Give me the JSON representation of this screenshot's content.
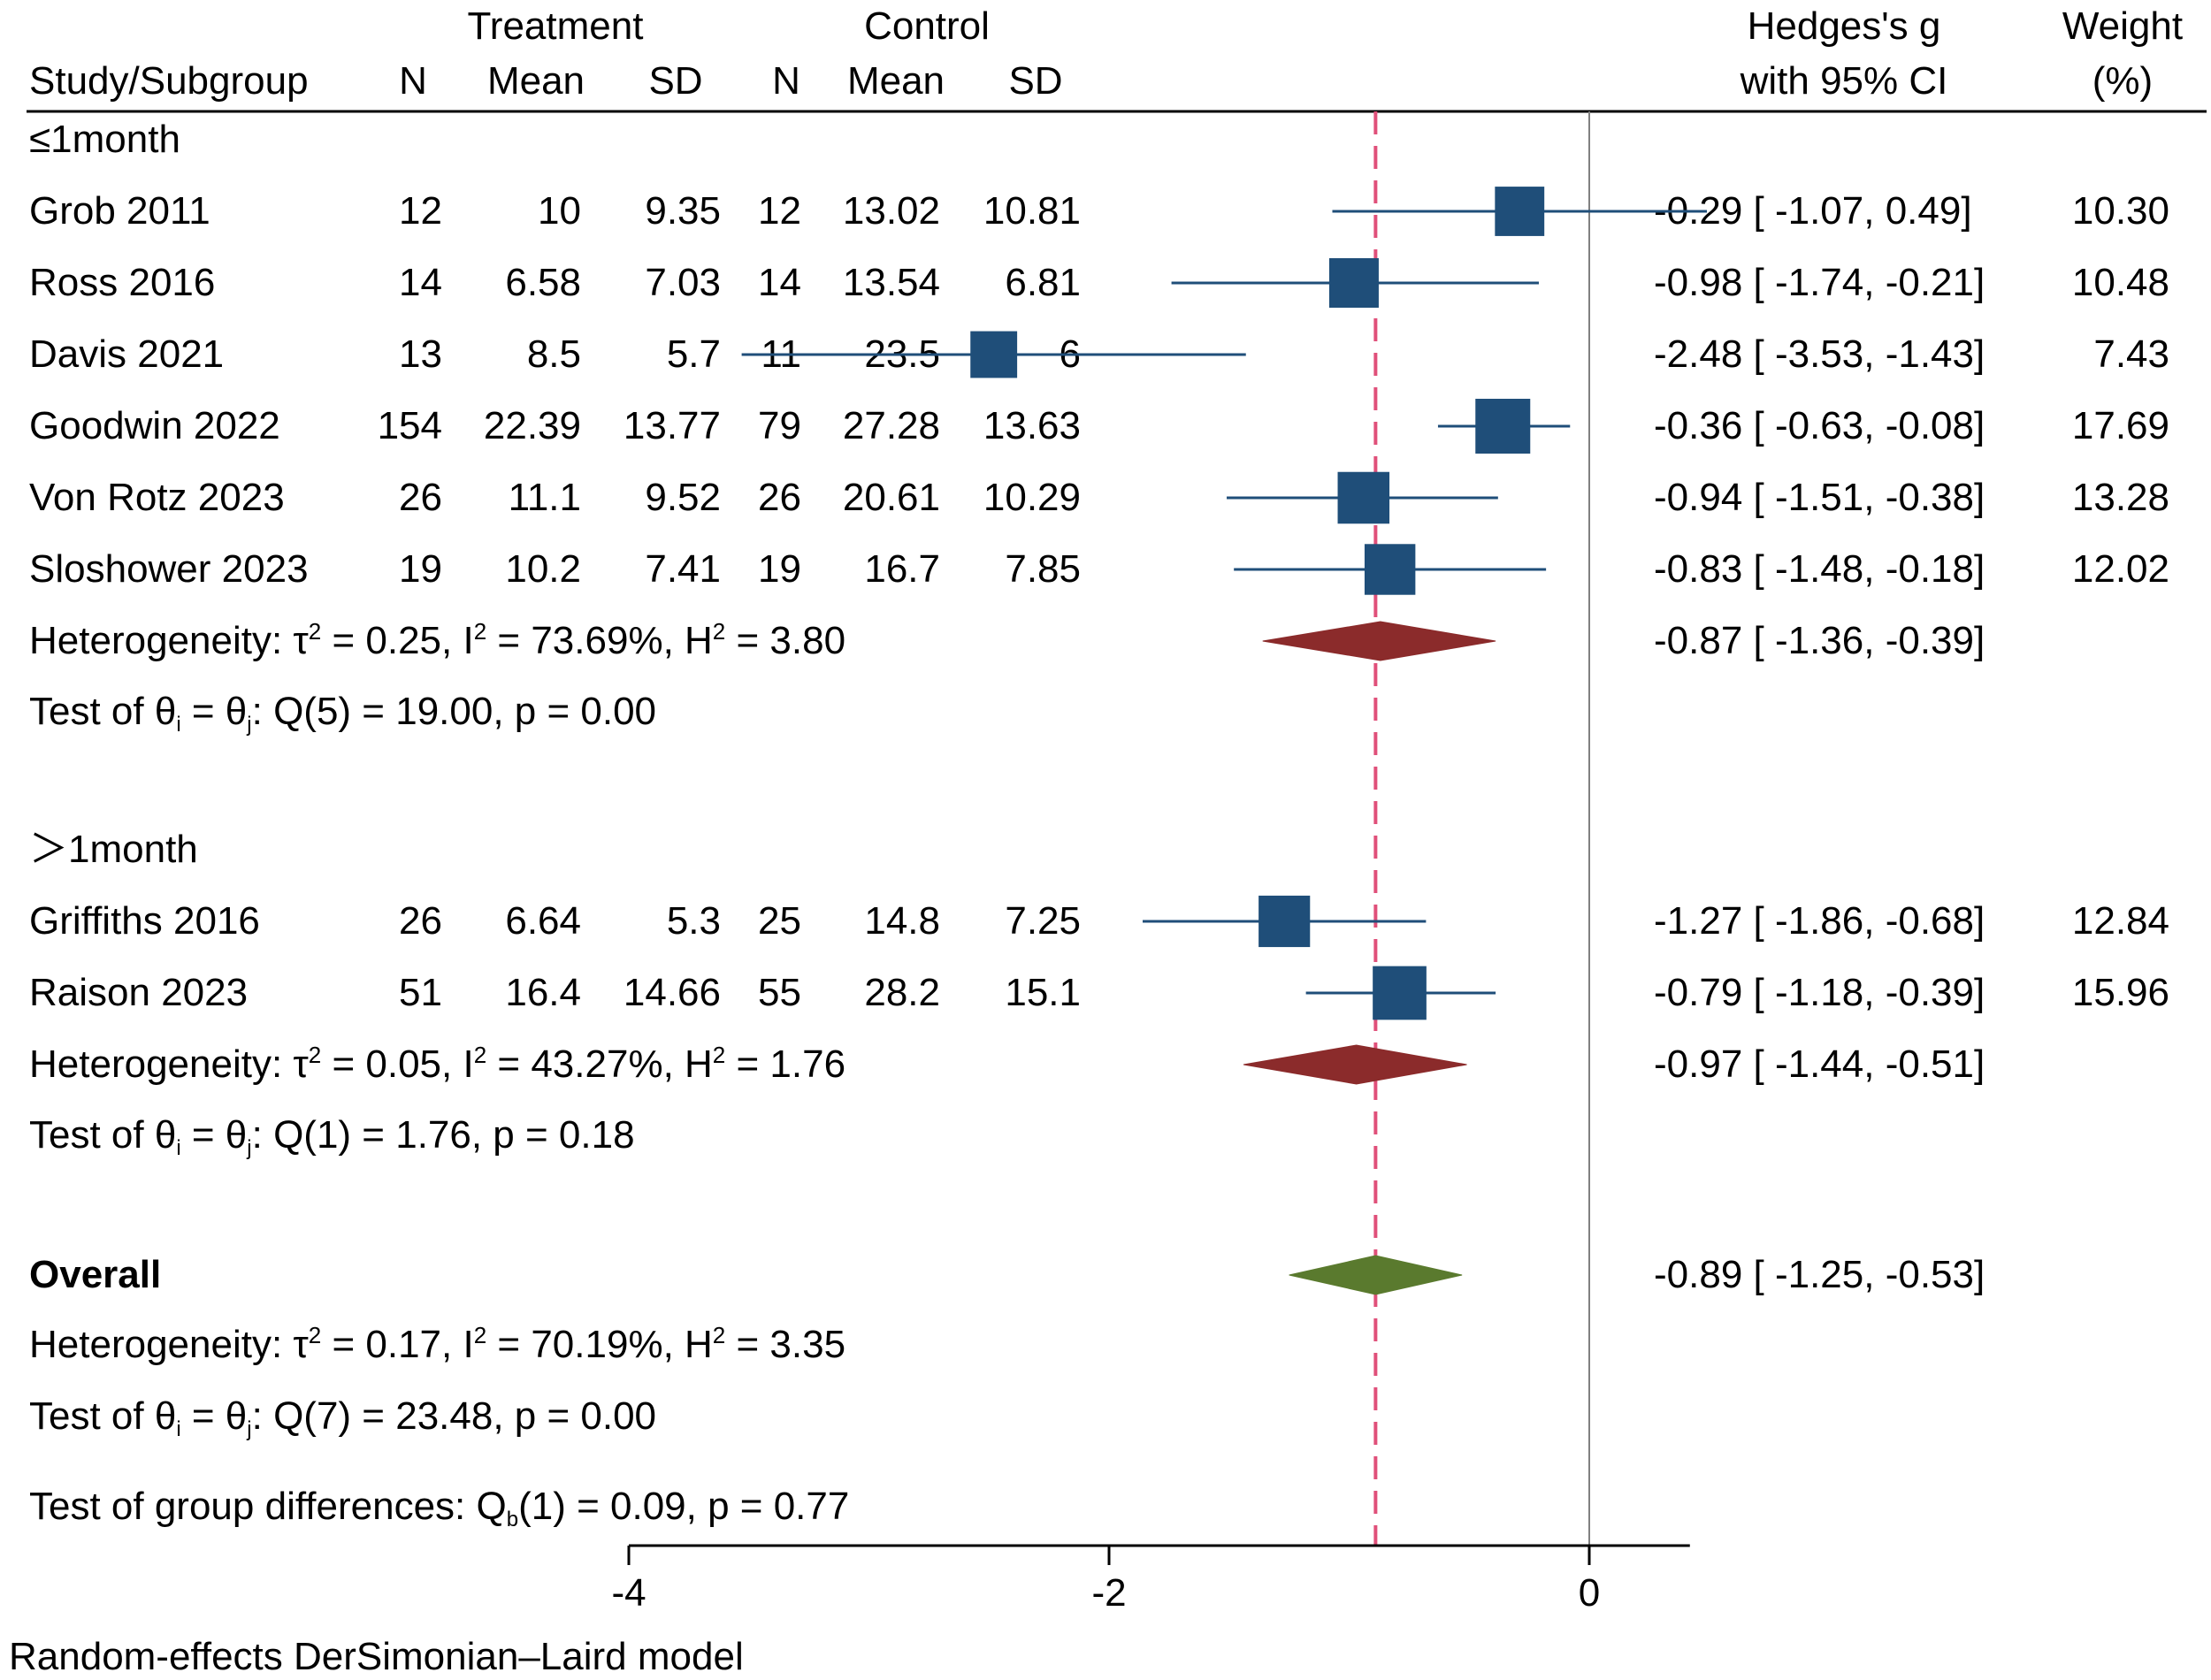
{
  "header": {
    "treatment": "Treatment",
    "control": "Control",
    "effect_line1": "Hedges's g",
    "effect_line2": "with 95% CI",
    "weight_line1": "Weight",
    "weight_line2": "(%)",
    "study_col": "Study/Subgroup",
    "n": "N",
    "mean": "Mean",
    "sd": "SD"
  },
  "colors": {
    "study_square": "#1f4e79",
    "subgroup_diamond": "#8b2b2b",
    "overall_diamond": "#5a7a2e",
    "overall_line": "#e0507a",
    "null_line": "#808080"
  },
  "chart_data": {
    "type": "forest",
    "title": "",
    "xlabel": "",
    "ylabel": "",
    "xlim": [
      -4.6,
      0.5
    ],
    "xticks": [
      -4,
      -2,
      0
    ],
    "xtick_labels": [
      "-4",
      "-2",
      "0"
    ],
    "overall_line_value": -0.89,
    "subgroups": [
      {
        "label": "≤1month",
        "studies": [
          {
            "name": "Grob  2011",
            "t_n": "12",
            "t_mean": "10",
            "t_sd": "9.35",
            "c_n": "12",
            "c_mean": "13.02",
            "c_sd": "10.81",
            "g": -0.29,
            "lo": -1.07,
            "hi": 0.49,
            "ci_text": "-0.29 [ -1.07,   0.49]",
            "weight": 10.3,
            "weight_text": "10.30"
          },
          {
            "name": "Ross  2016",
            "t_n": "14",
            "t_mean": "6.58",
            "t_sd": "7.03",
            "c_n": "14",
            "c_mean": "13.54",
            "c_sd": "6.81",
            "g": -0.98,
            "lo": -1.74,
            "hi": -0.21,
            "ci_text": "-0.98 [ -1.74,  -0.21]",
            "weight": 10.48,
            "weight_text": "10.48"
          },
          {
            "name": "Davis  2021",
            "t_n": "13",
            "t_mean": "8.5",
            "t_sd": "5.7",
            "c_n": "11",
            "c_mean": "23.5",
            "c_sd": "6",
            "g": -2.48,
            "lo": -3.53,
            "hi": -1.43,
            "ci_text": "-2.48 [ -3.53,  -1.43]",
            "weight": 7.43,
            "weight_text": "7.43"
          },
          {
            "name": "Goodwin  2022",
            "t_n": "154",
            "t_mean": "22.39",
            "t_sd": "13.77",
            "c_n": "79",
            "c_mean": "27.28",
            "c_sd": "13.63",
            "g": -0.36,
            "lo": -0.63,
            "hi": -0.08,
            "ci_text": "-0.36 [ -0.63,  -0.08]",
            "weight": 17.69,
            "weight_text": "17.69"
          },
          {
            "name": "Von Rotz 2023",
            "t_n": "26",
            "t_mean": "11.1",
            "t_sd": "9.52",
            "c_n": "26",
            "c_mean": "20.61",
            "c_sd": "10.29",
            "g": -0.94,
            "lo": -1.51,
            "hi": -0.38,
            "ci_text": "-0.94 [ -1.51,  -0.38]",
            "weight": 13.28,
            "weight_text": "13.28"
          },
          {
            "name": "Sloshower 2023",
            "t_n": "19",
            "t_mean": "10.2",
            "t_sd": "7.41",
            "c_n": "19",
            "c_mean": "16.7",
            "c_sd": "7.85",
            "g": -0.83,
            "lo": -1.48,
            "hi": -0.18,
            "ci_text": "-0.83 [ -1.48,  -0.18]",
            "weight": 12.02,
            "weight_text": "12.02"
          }
        ],
        "pooled": {
          "g": -0.87,
          "lo": -1.36,
          "hi": -0.39,
          "ci_text": "-0.87 [ -1.36,  -0.39]"
        },
        "heterogeneity": {
          "prefix": "Heterogeneity: τ",
          "tau_val": " = 0.25, I",
          "i_val": " = 73.69%, H",
          "h_val": " = 3.80"
        },
        "test": {
          "prefix": "Test of θ",
          "mid": " = θ",
          "suffix": ": Q(5) = 19.00, p = 0.00"
        }
      },
      {
        "label": "＞1month",
        "studies": [
          {
            "name": "Griffiths 2016",
            "t_n": "26",
            "t_mean": "6.64",
            "t_sd": "5.3",
            "c_n": "25",
            "c_mean": "14.8",
            "c_sd": "7.25",
            "g": -1.27,
            "lo": -1.86,
            "hi": -0.68,
            "ci_text": "-1.27 [ -1.86,  -0.68]",
            "weight": 12.84,
            "weight_text": "12.84"
          },
          {
            "name": "Raison  2023",
            "t_n": "51",
            "t_mean": "16.4",
            "t_sd": "14.66",
            "c_n": "55",
            "c_mean": "28.2",
            "c_sd": "15.1",
            "g": -0.79,
            "lo": -1.18,
            "hi": -0.39,
            "ci_text": "-0.79 [ -1.18,  -0.39]",
            "weight": 15.96,
            "weight_text": "15.96"
          }
        ],
        "pooled": {
          "g": -0.97,
          "lo": -1.44,
          "hi": -0.51,
          "ci_text": "-0.97 [ -1.44,  -0.51]"
        },
        "heterogeneity": {
          "prefix": "Heterogeneity: τ",
          "tau_val": " = 0.05, I",
          "i_val": " = 43.27%, H",
          "h_val": " = 1.76"
        },
        "test": {
          "prefix": "Test of θ",
          "mid": " = θ",
          "suffix": ": Q(1) = 1.76, p = 0.18"
        }
      }
    ],
    "overall": {
      "label": "Overall",
      "g": -0.89,
      "lo": -1.25,
      "hi": -0.53,
      "ci_text": "-0.89 [ -1.25,  -0.53]",
      "heterogeneity": {
        "prefix": "Heterogeneity: τ",
        "tau_val": " = 0.17, I",
        "i_val": " = 70.19%, H",
        "h_val": " = 3.35"
      },
      "test": {
        "prefix": "Test of θ",
        "mid": " = θ",
        "suffix": ": Q(7) = 23.48, p = 0.00"
      },
      "group_test": {
        "prefix": "Test of group differences: Q",
        "suffix": "(1) = 0.09, p = 0.77"
      }
    },
    "footnote": "Random-effects DerSimonian–Laird model"
  }
}
